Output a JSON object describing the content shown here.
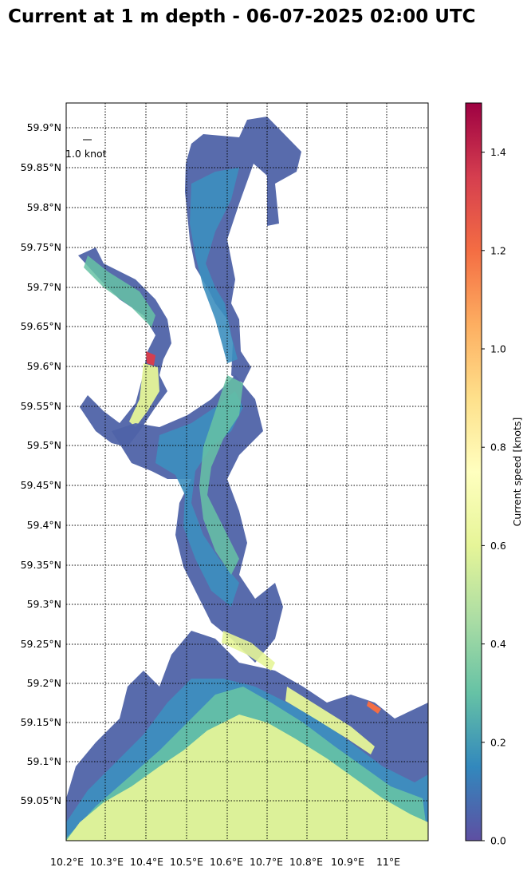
{
  "title": "Current at 1 m depth - 06-07-2025 02:00 UTC",
  "lon_ticks": [
    "10.2°E",
    "10.3°E",
    "10.4°E",
    "10.5°E",
    "10.6°E",
    "10.7°E",
    "10.8°E",
    "10.9°E",
    "11°E"
  ],
  "lat_ticks": [
    "59.9°N",
    "59.85°N",
    "59.8°N",
    "59.75°N",
    "59.7°N",
    "59.65°N",
    "59.6°N",
    "59.55°N",
    "59.5°N",
    "59.45°N",
    "59.4°N",
    "59.35°N",
    "59.3°N",
    "59.25°N",
    "59.2°N",
    "59.15°N",
    "59.1°N",
    "59.05°N"
  ],
  "quiver_key": "1.0 knot",
  "colorbar": {
    "label": "Current speed [knots]",
    "ticks": [
      "0.0",
      "0.2",
      "0.4",
      "0.6",
      "0.8",
      "1.0",
      "1.2",
      "1.4"
    ],
    "range": [
      0,
      1.5
    ],
    "colormap": [
      "#5e4fa2",
      "#3288bd",
      "#66c2a5",
      "#abdda4",
      "#e6f598",
      "#ffffbf",
      "#fee08b",
      "#fdae61",
      "#f46d43",
      "#d53e4f",
      "#9e0142"
    ]
  },
  "map_colors": {
    "slow": "#5e4fa2",
    "medium_slow": "#3288bd",
    "medium": "#66c2a5",
    "fast": "#e6f598",
    "fastest": "#d53e4f"
  }
}
